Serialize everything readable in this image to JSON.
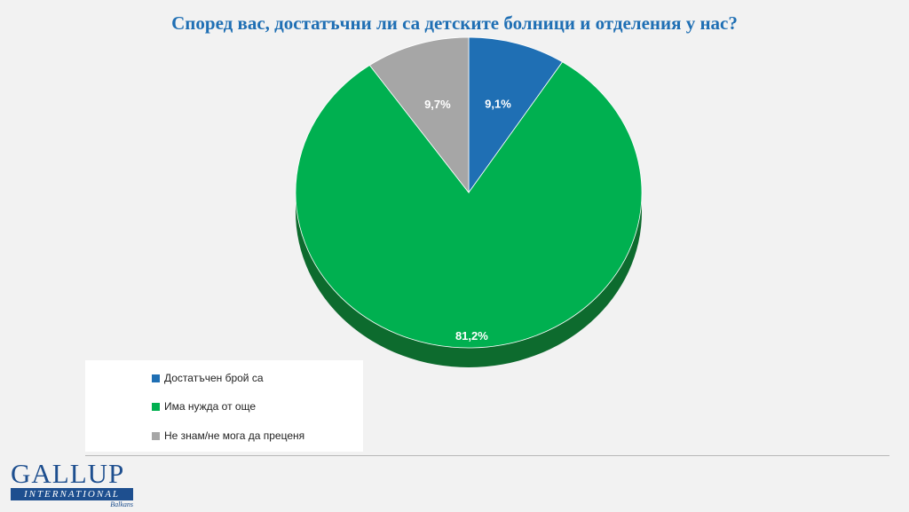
{
  "colors": {
    "blue": "#1f6fb4",
    "green": "#00b050",
    "green_dark": "#0d6b2e",
    "gray": "#a6a6a6",
    "brand": "#1e4f8f"
  },
  "chart_data": {
    "type": "pie",
    "title": "Според вас, достатъчни ли са детските болници и отделения у нас?",
    "slices": [
      {
        "label": "Достатъчен брой са",
        "value": 9.1,
        "display": "9,1%",
        "color": "#1f6fb4"
      },
      {
        "label": "Има нужда от още",
        "value": 81.2,
        "display": "81,2%",
        "color": "#00b050"
      },
      {
        "label": "Не знам/не мога да преценя",
        "value": 9.7,
        "display": "9,7%",
        "color": "#a6a6a6"
      }
    ],
    "legend_position": "bottom-left",
    "style": "3d"
  },
  "legend": {
    "items": [
      {
        "label": "Достатъчен брой са"
      },
      {
        "label": "Има нужда от още"
      },
      {
        "label": "Не знам/не мога да преценя"
      }
    ]
  },
  "logo": {
    "main": "GALLUP",
    "bar": "INTERNATIONAL",
    "sub": "Balkans"
  }
}
